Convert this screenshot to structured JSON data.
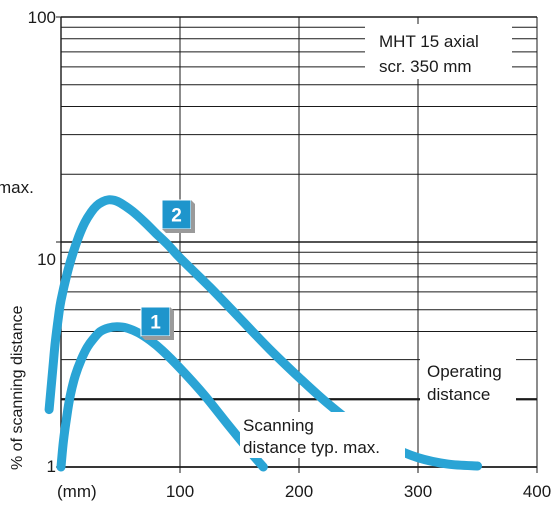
{
  "chart_data": {
    "type": "line",
    "title": "",
    "xlabel": "(mm)",
    "ylabel": "% of scanning distance",
    "x_scale": "linear",
    "y_scale": "log",
    "xlim": [
      0,
      400
    ],
    "ylim": [
      1,
      100
    ],
    "x_ticks": [
      "100",
      "200",
      "300",
      "400"
    ],
    "y_ticks": [
      "1",
      "10",
      "100"
    ],
    "grid": true,
    "colors": {
      "curve": "#2aa4d5",
      "marker_face": "#1e95cc",
      "grid": "#1a1a1a",
      "label_bg": "#ffffff"
    },
    "annotations": {
      "sensor_label_line1": "MHT 15 axial",
      "sensor_label_line2": "scr. 350 mm",
      "operating_line1": "Operating",
      "operating_line2": "distance",
      "scanning_line1": "Scanning",
      "scanning_line2": "distance typ. max.",
      "clipped_left": "max."
    },
    "series": [
      {
        "name": "2",
        "x": [
          -10,
          -7,
          -5,
          -2,
          0,
          5,
          10,
          15,
          20,
          25,
          30,
          35,
          40,
          45,
          50,
          60,
          70,
          80,
          90,
          100,
          125,
          150,
          175,
          200,
          225,
          250,
          275,
          300,
          325,
          350
        ],
        "y": [
          1.8,
          2.7,
          3.5,
          4.7,
          5.5,
          7.2,
          8.9,
          10.6,
          12.2,
          13.5,
          14.5,
          15.1,
          15.4,
          15.3,
          14.9,
          13.7,
          12.3,
          10.9,
          9.7,
          8.5,
          6.3,
          4.6,
          3.35,
          2.5,
          1.9,
          1.5,
          1.25,
          1.1,
          1.03,
          1.01
        ]
      },
      {
        "name": "1",
        "x": [
          0,
          2,
          5,
          8,
          12,
          17,
          22,
          27,
          33,
          40,
          47,
          55,
          65,
          75,
          85,
          100,
          120,
          140,
          160,
          170
        ],
        "y": [
          1.0,
          1.3,
          1.7,
          2.1,
          2.55,
          3.0,
          3.4,
          3.7,
          4.0,
          4.15,
          4.2,
          4.15,
          3.95,
          3.65,
          3.3,
          2.75,
          2.1,
          1.55,
          1.15,
          1.0
        ]
      }
    ]
  }
}
